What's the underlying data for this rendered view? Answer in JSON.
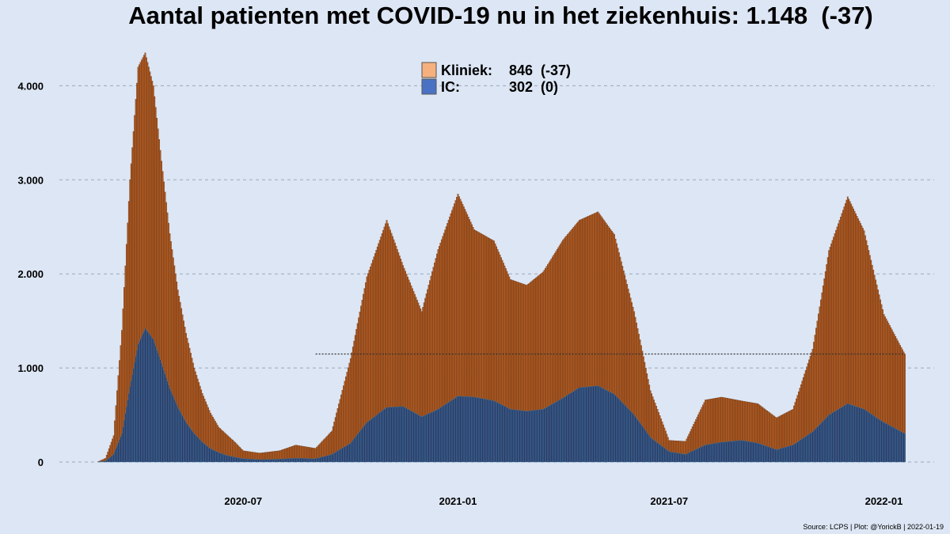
{
  "title": "Aantal patienten met COVID-19 nu in het ziekenhuis: 1.148  (-37)",
  "caption": "Source: LCPS | Plot: @YorickB |  2022-01-19",
  "legend": [
    {
      "label": "Kliniek:",
      "value": "846  (-37)",
      "color": "#f5b07e"
    },
    {
      "label": "IC:",
      "value": "302  (0)",
      "color": "#4a72c4"
    }
  ],
  "colors": {
    "kliniek_bar": "#b05a22",
    "kliniek_stroke": "#5e2f10",
    "ic_bar": "#2b3a66",
    "ic_stroke": "#3f7fa8",
    "reference_line": "#333333"
  },
  "chart_data": {
    "type": "bar",
    "stacked": true,
    "x_axis": {
      "type": "date",
      "range": [
        "2020-02-27",
        "2022-01-19"
      ],
      "ticks": [
        "2020-07",
        "2021-01",
        "2021-07",
        "2022-01"
      ]
    },
    "y_axis": {
      "range": [
        0,
        4400
      ],
      "ticks": [
        "0",
        "1.000",
        "2.000",
        "3.000",
        "4.000"
      ],
      "grid": true,
      "grid_style": "dashed"
    },
    "reference_line": {
      "value": 1148,
      "from": "2020-09-01",
      "to": "2022-01-19",
      "style": "dotted"
    },
    "legend_position": "top-center",
    "series": [
      {
        "name": "IC",
        "points": [
          [
            "2020-02-27",
            0
          ],
          [
            "2020-03-05",
            10
          ],
          [
            "2020-03-12",
            80
          ],
          [
            "2020-03-19",
            300
          ],
          [
            "2020-03-26",
            800
          ],
          [
            "2020-04-02",
            1250
          ],
          [
            "2020-04-08",
            1420
          ],
          [
            "2020-04-15",
            1300
          ],
          [
            "2020-04-22",
            1050
          ],
          [
            "2020-04-29",
            780
          ],
          [
            "2020-05-06",
            580
          ],
          [
            "2020-05-13",
            420
          ],
          [
            "2020-05-20",
            300
          ],
          [
            "2020-05-27",
            210
          ],
          [
            "2020-06-03",
            140
          ],
          [
            "2020-06-10",
            100
          ],
          [
            "2020-06-17",
            70
          ],
          [
            "2020-06-24",
            50
          ],
          [
            "2020-07-01",
            35
          ],
          [
            "2020-07-15",
            25
          ],
          [
            "2020-08-01",
            30
          ],
          [
            "2020-08-15",
            40
          ],
          [
            "2020-09-01",
            35
          ],
          [
            "2020-09-15",
            80
          ],
          [
            "2020-10-01",
            200
          ],
          [
            "2020-10-15",
            420
          ],
          [
            "2020-11-01",
            580
          ],
          [
            "2020-11-15",
            590
          ],
          [
            "2020-12-01",
            480
          ],
          [
            "2020-12-15",
            560
          ],
          [
            "2021-01-01",
            700
          ],
          [
            "2021-01-15",
            690
          ],
          [
            "2021-02-01",
            650
          ],
          [
            "2021-02-15",
            560
          ],
          [
            "2021-03-01",
            540
          ],
          [
            "2021-03-15",
            560
          ],
          [
            "2021-04-01",
            680
          ],
          [
            "2021-04-15",
            790
          ],
          [
            "2021-05-01",
            810
          ],
          [
            "2021-05-15",
            720
          ],
          [
            "2021-06-01",
            500
          ],
          [
            "2021-06-15",
            260
          ],
          [
            "2021-07-01",
            110
          ],
          [
            "2021-07-15",
            80
          ],
          [
            "2021-08-01",
            180
          ],
          [
            "2021-08-15",
            210
          ],
          [
            "2021-09-01",
            230
          ],
          [
            "2021-09-15",
            200
          ],
          [
            "2021-10-01",
            130
          ],
          [
            "2021-10-15",
            180
          ],
          [
            "2021-11-01",
            320
          ],
          [
            "2021-11-15",
            500
          ],
          [
            "2021-12-01",
            620
          ],
          [
            "2021-12-15",
            560
          ],
          [
            "2022-01-01",
            420
          ],
          [
            "2022-01-19",
            302
          ]
        ]
      },
      {
        "name": "Kliniek",
        "points": [
          [
            "2020-02-27",
            0
          ],
          [
            "2020-03-05",
            30
          ],
          [
            "2020-03-12",
            200
          ],
          [
            "2020-03-19",
            1100
          ],
          [
            "2020-03-26",
            2200
          ],
          [
            "2020-04-02",
            2950
          ],
          [
            "2020-04-08",
            2930
          ],
          [
            "2020-04-15",
            2700
          ],
          [
            "2020-04-22",
            2150
          ],
          [
            "2020-04-29",
            1650
          ],
          [
            "2020-05-06",
            1250
          ],
          [
            "2020-05-13",
            950
          ],
          [
            "2020-05-20",
            700
          ],
          [
            "2020-05-27",
            520
          ],
          [
            "2020-06-03",
            380
          ],
          [
            "2020-06-10",
            270
          ],
          [
            "2020-06-17",
            220
          ],
          [
            "2020-06-24",
            160
          ],
          [
            "2020-07-01",
            85
          ],
          [
            "2020-07-15",
            70
          ],
          [
            "2020-08-01",
            90
          ],
          [
            "2020-08-15",
            140
          ],
          [
            "2020-09-01",
            110
          ],
          [
            "2020-09-15",
            250
          ],
          [
            "2020-10-01",
            900
          ],
          [
            "2020-10-15",
            1550
          ],
          [
            "2020-11-01",
            1990
          ],
          [
            "2020-11-15",
            1500
          ],
          [
            "2020-12-01",
            1120
          ],
          [
            "2020-12-15",
            1700
          ],
          [
            "2021-01-01",
            2150
          ],
          [
            "2021-01-15",
            1780
          ],
          [
            "2021-02-01",
            1700
          ],
          [
            "2021-02-15",
            1380
          ],
          [
            "2021-03-01",
            1340
          ],
          [
            "2021-03-15",
            1460
          ],
          [
            "2021-04-01",
            1680
          ],
          [
            "2021-04-15",
            1780
          ],
          [
            "2021-05-01",
            1850
          ],
          [
            "2021-05-15",
            1700
          ],
          [
            "2021-06-01",
            1100
          ],
          [
            "2021-06-15",
            500
          ],
          [
            "2021-07-01",
            120
          ],
          [
            "2021-07-15",
            140
          ],
          [
            "2021-08-01",
            480
          ],
          [
            "2021-08-15",
            480
          ],
          [
            "2021-09-01",
            420
          ],
          [
            "2021-09-15",
            420
          ],
          [
            "2021-10-01",
            340
          ],
          [
            "2021-10-15",
            380
          ],
          [
            "2021-11-01",
            880
          ],
          [
            "2021-11-15",
            1750
          ],
          [
            "2021-12-01",
            2200
          ],
          [
            "2021-12-15",
            1900
          ],
          [
            "2022-01-01",
            1150
          ],
          [
            "2022-01-19",
            846
          ]
        ]
      }
    ]
  }
}
